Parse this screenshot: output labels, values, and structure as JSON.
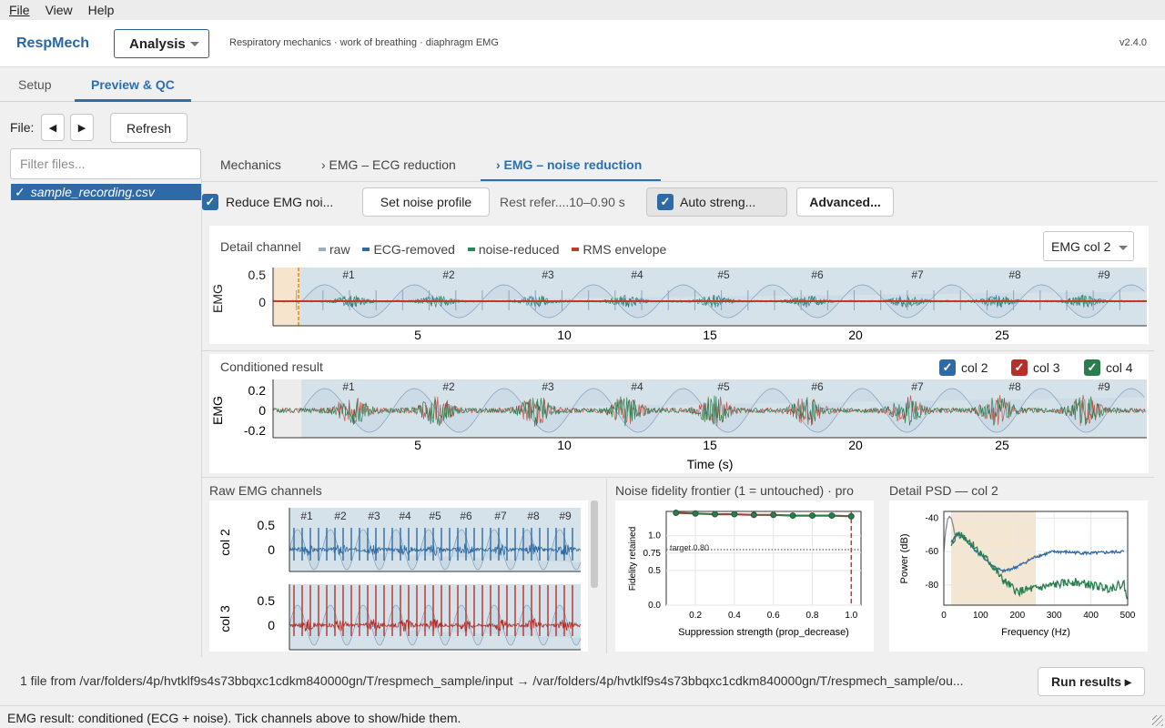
{
  "menu": [
    "File",
    "View",
    "Help"
  ],
  "header": {
    "brand": "RespMech",
    "mode": "Analysis",
    "subtitle": "Respiratory mechanics · work of breathing · diaphragm EMG",
    "version": "v2.4.0"
  },
  "main_tabs": [
    "Setup",
    "Preview & QC"
  ],
  "file_nav": {
    "label": "File:",
    "prev": "◀",
    "next": "▶",
    "refresh": "Refresh",
    "filter_placeholder": "Filter files...",
    "selected_file": "sample_recording.csv"
  },
  "sub_tabs": [
    "Mechanics",
    "› EMG – ECG reduction",
    "› EMG – noise reduction"
  ],
  "controls": {
    "reduce_noise": "Reduce EMG noi...",
    "set_profile": "Set noise profile",
    "rest_ref": "Rest refer....10–0.90 s",
    "auto_strength": "Auto streng...",
    "advanced": "Advanced..."
  },
  "detail_panel": {
    "title": "Detail channel",
    "legend": [
      {
        "label": "raw",
        "color": "#9aaebf"
      },
      {
        "label": "ECG-removed",
        "color": "#2e6aa3"
      },
      {
        "label": "noise-reduced",
        "color": "#2a8a55"
      },
      {
        "label": "RMS envelope",
        "color": "#c0392b"
      }
    ],
    "channel_select": "EMG col 2",
    "ylabel": "EMG",
    "yticks": [
      "0.5",
      "0"
    ],
    "xticks": [
      "5",
      "10",
      "15",
      "20",
      "25"
    ],
    "breaths": [
      "#1",
      "#2",
      "#3",
      "#4",
      "#5",
      "#6",
      "#7",
      "#8",
      "#9"
    ]
  },
  "conditioned_panel": {
    "title": "Conditioned result",
    "channels": [
      {
        "label": "col 2",
        "color": "#2d6aa6"
      },
      {
        "label": "col 3",
        "color": "#b3302b"
      },
      {
        "label": "col 4",
        "color": "#2a7d4f"
      }
    ],
    "ylabel": "EMG",
    "yticks": [
      "0.2",
      "0",
      "-0.2"
    ],
    "xticks": [
      "5",
      "10",
      "15",
      "20",
      "25"
    ],
    "xlabel": "Time (s)",
    "breaths": [
      "#1",
      "#2",
      "#3",
      "#4",
      "#5",
      "#6",
      "#7",
      "#8",
      "#9"
    ]
  },
  "raw_panel": {
    "title": "Raw EMG channels",
    "channels": [
      {
        "label": "col 2",
        "color": "#2e6aa3",
        "yticks": [
          "0.5",
          "0"
        ]
      },
      {
        "label": "col 3",
        "color": "#b3302b",
        "yticks": [
          "0.5",
          "0"
        ]
      }
    ],
    "breaths": [
      "#1",
      "#2",
      "#3",
      "#4",
      "#5",
      "#6",
      "#7",
      "#8",
      "#9"
    ]
  },
  "fidelity_panel": {
    "title": "Noise fidelity frontier (1 = untouched)  ·  pro",
    "target_label": "target 0.80",
    "chart_data": {
      "type": "line",
      "xlabel": "Suppression strength (prop_decrease)",
      "ylabel": "Fidelity retained",
      "xlim": [
        0.05,
        1.05
      ],
      "ylim": [
        0.0,
        1.35
      ],
      "xticks": [
        "0.2",
        "0.4",
        "0.6",
        "0.8",
        "1.0"
      ],
      "yticks": [
        "0.0",
        "0.5",
        "0.75",
        "1.0"
      ],
      "ytick_labels": [
        "0.0",
        "0.5",
        "0.75",
        "1.0"
      ],
      "x": [
        0.1,
        0.2,
        0.3,
        0.4,
        0.5,
        0.6,
        0.7,
        0.8,
        0.9,
        1.0
      ],
      "values": [
        1.33,
        1.32,
        1.31,
        1.31,
        1.3,
        1.3,
        1.29,
        1.29,
        1.29,
        1.28
      ],
      "target": 0.8,
      "selected_x": 1.0
    }
  },
  "psd_panel": {
    "title": "Detail PSD — col 2",
    "chart_data": {
      "type": "line",
      "xlabel": "Frequency (Hz)",
      "ylabel": "Power (dB)",
      "xlim": [
        0,
        500
      ],
      "ylim": [
        -92,
        -36
      ],
      "xticks": [
        "0",
        "100",
        "200",
        "300",
        "400",
        "500"
      ],
      "yticks": [
        "-40",
        "-60",
        "-80"
      ],
      "band": [
        20,
        250
      ],
      "series": [
        {
          "name": "",
          "color": "#8a8a8a",
          "x": [
            0,
            5,
            10,
            15,
            20,
            25,
            30
          ],
          "values": [
            -60,
            -48,
            -41,
            -39,
            -40,
            -44,
            -50
          ]
        },
        {
          "name": "",
          "color": "#2e6aa3",
          "x": [
            20,
            30,
            40,
            60,
            80,
            100,
            130,
            160,
            200,
            250,
            300,
            400,
            490
          ],
          "values": [
            -55,
            -51,
            -49,
            -53,
            -58,
            -62,
            -68,
            -72,
            -69,
            -63,
            -60,
            -61,
            -60
          ]
        },
        {
          "name": "",
          "color": "#2a7d4f",
          "x": [
            20,
            30,
            40,
            60,
            80,
            100,
            130,
            160,
            200,
            250,
            300,
            350,
            400,
            450,
            490,
            500
          ],
          "values": [
            -58,
            -52,
            -49,
            -52,
            -56,
            -61,
            -68,
            -77,
            -84,
            -82,
            -80,
            -78,
            -80,
            -82,
            -79,
            -90
          ]
        }
      ]
    }
  },
  "footer": {
    "path": "1 file from /var/folders/4p/hvtklf9s4s73bbqxc1cdkm840000gn/T/respmech_sample/input → /var/folders/4p/hvtklf9s4s73bbqxc1cdkm840000gn/T/respmech_sample/ou...",
    "run_button": "Run results ▸",
    "status": "EMG result: conditioned (ECG + noise). Tick channels above to show/hide them."
  }
}
